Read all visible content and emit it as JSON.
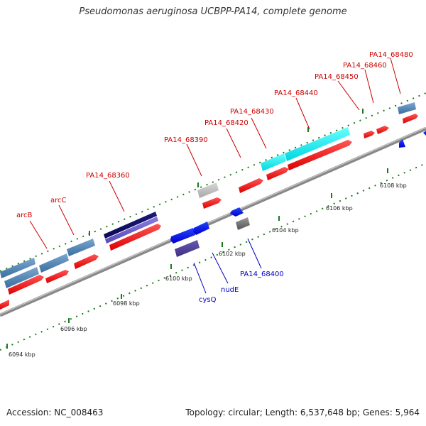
{
  "title": "Pseudomonas aeruginosa UCBPP-PA14, complete genome",
  "footer": {
    "accession": "Accession: NC_008463",
    "summary": "Topology: circular; Length: 6,537,648 bp; Genes: 5,964"
  },
  "colors": {
    "backbone": "#999999",
    "forward_label": "#cc0000",
    "reverse_label": "#0000bb",
    "tick": "#1a7a1a"
  },
  "scale": {
    "unit": "kbp",
    "labels": [
      "6094 kbp",
      "6096 kbp",
      "6098 kbp",
      "6100 kbp",
      "6102 kbp",
      "6104 kbp",
      "6106 kbp",
      "6108 kbp"
    ]
  },
  "genes": {
    "forward_labels": [
      "arcB",
      "arcC",
      "PA14_68360",
      "PA14_68390",
      "PA14_68420",
      "PA14_68430",
      "PA14_68440",
      "PA14_68450",
      "PA14_68460",
      "PA14_68480"
    ],
    "reverse_labels": [
      "cysQ",
      "nudE",
      "PA14_68400"
    ]
  }
}
